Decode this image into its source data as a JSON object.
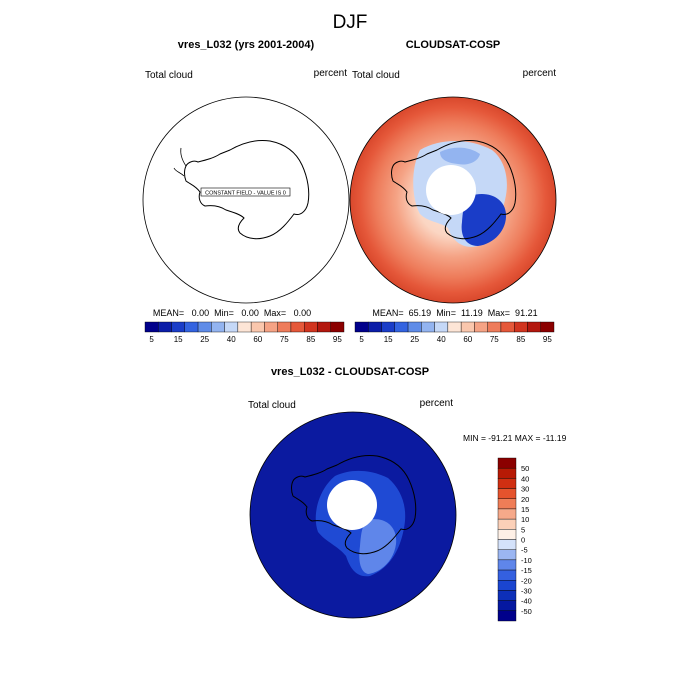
{
  "title": "DJF",
  "panels": [
    {
      "title": "vres_L032 (yrs 2001-2004)",
      "left_label": "Total cloud",
      "right_label": "percent",
      "constant_label": "CONSTANT FIELD - VALUE IS 0",
      "stats": "MEAN=   0.00  Min=   0.00  Max=   0.00"
    },
    {
      "title": "CLOUDSAT-COSP",
      "left_label": "Total cloud",
      "right_label": "percent",
      "stats": "MEAN=  65.19  Min=  11.19  Max=  91.21"
    },
    {
      "title": "vres_L032 - CLOUDSAT-COSP",
      "left_label": "Total cloud",
      "right_label": "percent",
      "stats": "MIN = -91.21 MAX = -11.19"
    }
  ],
  "colorbar_main": {
    "colors": [
      "#00008b",
      "#0b1da8",
      "#1a3dc8",
      "#3363e0",
      "#5f8ce8",
      "#93b4f0",
      "#c5d8f7",
      "#fde5d6",
      "#fac7ad",
      "#f5a385",
      "#ee7c5b",
      "#e5583a",
      "#d1341f",
      "#b3170e",
      "#8b0000"
    ],
    "labels": [
      "5",
      "15",
      "25",
      "40",
      "60",
      "75",
      "85",
      "95"
    ]
  },
  "colorbar_diff": {
    "colors": [
      "#00008b",
      "#0518a0",
      "#0d2fb8",
      "#1a45d0",
      "#3460e0",
      "#5f86ea",
      "#9bb6f2",
      "#d4e2fa",
      "#fef0e6",
      "#fbd0b8",
      "#f6a98a",
      "#ef7d57",
      "#e5532d",
      "#d02f12",
      "#b71a05",
      "#8b0000"
    ],
    "labels": [
      "50",
      "40",
      "30",
      "20",
      "15",
      "10",
      "5",
      "0",
      "-5",
      "-10",
      "-15",
      "-20",
      "-30",
      "-40",
      "-50"
    ]
  },
  "chart_data": [
    {
      "type": "heatmap",
      "title": "vres_L032 (yrs 2001-2004)",
      "variable": "Total cloud",
      "units": "percent",
      "projection": "south polar stereographic",
      "field": "constant",
      "value": 0,
      "mean": 0.0,
      "min": 0.0,
      "max": 0.0,
      "levels": [
        5,
        10,
        15,
        20,
        25,
        30,
        40,
        50,
        60,
        70,
        75,
        80,
        85,
        90,
        95
      ]
    },
    {
      "type": "heatmap",
      "title": "CLOUDSAT-COSP",
      "variable": "Total cloud",
      "units": "percent",
      "projection": "south polar stereographic",
      "mean": 65.19,
      "min": 11.19,
      "max": 91.21,
      "levels": [
        5,
        10,
        15,
        20,
        25,
        30,
        40,
        50,
        60,
        70,
        75,
        80,
        85,
        90,
        95
      ],
      "profile": {
        "outer_ring_pct": 85,
        "mid_ring_pct": 70,
        "coast_pct": 55,
        "interior_low_pct": 15
      }
    },
    {
      "type": "heatmap",
      "title": "vres_L032 - CLOUDSAT-COSP",
      "variable": "Total cloud",
      "units": "percent",
      "projection": "south polar stereographic",
      "min": -91.21,
      "max": -11.19,
      "levels": [
        -50,
        -40,
        -30,
        -20,
        -15,
        -10,
        -5,
        0,
        5,
        10,
        15,
        20,
        30,
        40,
        50
      ]
    }
  ]
}
